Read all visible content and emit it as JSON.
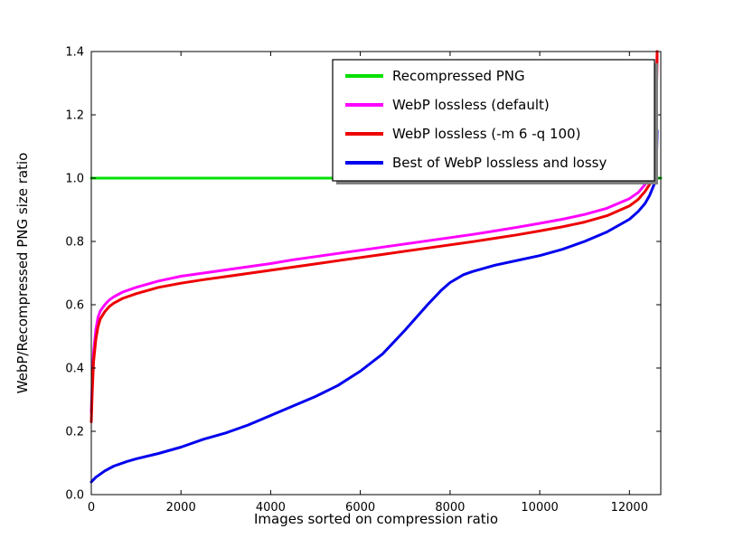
{
  "chart_data": {
    "type": "line",
    "title": "",
    "xlabel": "Images sorted on compression ratio",
    "ylabel": "WebP/Recompressed PNG size ratio",
    "xlim": [
      0,
      12700
    ],
    "ylim": [
      0,
      1.4
    ],
    "xticks": [
      0,
      2000,
      4000,
      6000,
      8000,
      10000,
      12000
    ],
    "xtick_labels": [
      "0",
      "2000",
      "4000",
      "6000",
      "8000",
      "10000",
      "12000"
    ],
    "yticks": [
      0,
      0.2,
      0.4,
      0.6,
      0.8,
      1.0,
      1.2,
      1.4
    ],
    "ytick_labels": [
      "0.0",
      "0.2",
      "0.4",
      "0.6",
      "0.8",
      "1.0",
      "1.2",
      "1.4"
    ],
    "grid": false,
    "legend": {
      "position": "upper center-right",
      "shadow": true
    },
    "series": [
      {
        "name": "Recompressed PNG",
        "color": "#00e000",
        "width": 3,
        "points": [
          [
            0,
            1.0
          ],
          [
            12700,
            1.0
          ]
        ]
      },
      {
        "name": "WebP lossless (default)",
        "color": "#ff00ff",
        "width": 3,
        "points": [
          [
            0,
            0.26
          ],
          [
            20,
            0.35
          ],
          [
            50,
            0.45
          ],
          [
            100,
            0.52
          ],
          [
            150,
            0.56
          ],
          [
            200,
            0.58
          ],
          [
            300,
            0.6
          ],
          [
            400,
            0.615
          ],
          [
            500,
            0.625
          ],
          [
            700,
            0.64
          ],
          [
            1000,
            0.655
          ],
          [
            1500,
            0.675
          ],
          [
            2000,
            0.69
          ],
          [
            2500,
            0.7
          ],
          [
            3000,
            0.71
          ],
          [
            3500,
            0.72
          ],
          [
            4000,
            0.73
          ],
          [
            4500,
            0.742
          ],
          [
            5000,
            0.752
          ],
          [
            5500,
            0.762
          ],
          [
            6000,
            0.772
          ],
          [
            6500,
            0.782
          ],
          [
            7000,
            0.792
          ],
          [
            7500,
            0.802
          ],
          [
            8000,
            0.812
          ],
          [
            8500,
            0.822
          ],
          [
            9000,
            0.833
          ],
          [
            9500,
            0.845
          ],
          [
            10000,
            0.857
          ],
          [
            10500,
            0.87
          ],
          [
            11000,
            0.885
          ],
          [
            11500,
            0.905
          ],
          [
            12000,
            0.935
          ],
          [
            12200,
            0.955
          ],
          [
            12350,
            0.98
          ],
          [
            12450,
            1.0
          ],
          [
            12520,
            1.05
          ],
          [
            12570,
            1.12
          ],
          [
            12600,
            1.25
          ],
          [
            12620,
            1.4
          ]
        ]
      },
      {
        "name": "WebP lossless (-m 6 -q 100)",
        "color": "#ee0000",
        "width": 3,
        "points": [
          [
            0,
            0.23
          ],
          [
            20,
            0.32
          ],
          [
            50,
            0.42
          ],
          [
            100,
            0.49
          ],
          [
            150,
            0.53
          ],
          [
            200,
            0.555
          ],
          [
            300,
            0.578
          ],
          [
            400,
            0.594
          ],
          [
            500,
            0.605
          ],
          [
            700,
            0.62
          ],
          [
            1000,
            0.635
          ],
          [
            1500,
            0.655
          ],
          [
            2000,
            0.668
          ],
          [
            2500,
            0.679
          ],
          [
            3000,
            0.689
          ],
          [
            3500,
            0.699
          ],
          [
            4000,
            0.709
          ],
          [
            4500,
            0.719
          ],
          [
            5000,
            0.729
          ],
          [
            5500,
            0.739
          ],
          [
            6000,
            0.749
          ],
          [
            6500,
            0.759
          ],
          [
            7000,
            0.769
          ],
          [
            7500,
            0.779
          ],
          [
            8000,
            0.789
          ],
          [
            8500,
            0.799
          ],
          [
            9000,
            0.81
          ],
          [
            9500,
            0.821
          ],
          [
            10000,
            0.833
          ],
          [
            10500,
            0.846
          ],
          [
            11000,
            0.861
          ],
          [
            11500,
            0.881
          ],
          [
            12000,
            0.912
          ],
          [
            12200,
            0.933
          ],
          [
            12350,
            0.958
          ],
          [
            12450,
            0.98
          ],
          [
            12520,
            1.01
          ],
          [
            12570,
            1.07
          ],
          [
            12600,
            1.2
          ],
          [
            12620,
            1.4
          ]
        ]
      },
      {
        "name": "Best of WebP lossless and lossy",
        "color": "#0000ee",
        "width": 3,
        "points": [
          [
            0,
            0.04
          ],
          [
            100,
            0.055
          ],
          [
            300,
            0.075
          ],
          [
            500,
            0.09
          ],
          [
            800,
            0.105
          ],
          [
            1000,
            0.113
          ],
          [
            1500,
            0.13
          ],
          [
            2000,
            0.15
          ],
          [
            2500,
            0.175
          ],
          [
            3000,
            0.195
          ],
          [
            3500,
            0.22
          ],
          [
            4000,
            0.25
          ],
          [
            4500,
            0.28
          ],
          [
            5000,
            0.31
          ],
          [
            5500,
            0.345
          ],
          [
            6000,
            0.39
          ],
          [
            6500,
            0.445
          ],
          [
            7000,
            0.52
          ],
          [
            7500,
            0.6
          ],
          [
            7800,
            0.645
          ],
          [
            8000,
            0.67
          ],
          [
            8300,
            0.695
          ],
          [
            8500,
            0.705
          ],
          [
            9000,
            0.725
          ],
          [
            9500,
            0.74
          ],
          [
            10000,
            0.755
          ],
          [
            10500,
            0.775
          ],
          [
            11000,
            0.8
          ],
          [
            11500,
            0.83
          ],
          [
            12000,
            0.87
          ],
          [
            12200,
            0.895
          ],
          [
            12350,
            0.92
          ],
          [
            12450,
            0.945
          ],
          [
            12550,
            0.98
          ],
          [
            12600,
            1.02
          ],
          [
            12620,
            1.15
          ]
        ]
      }
    ]
  }
}
